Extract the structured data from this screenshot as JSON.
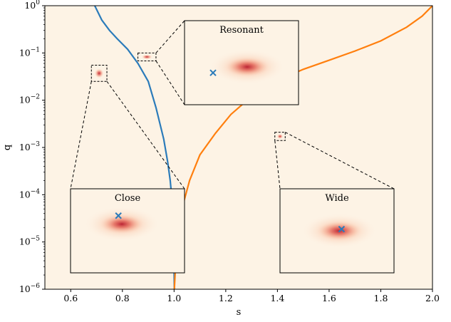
{
  "chart_data": {
    "type": "line",
    "xlabel": "s",
    "ylabel": "q",
    "xlim": [
      0.5,
      2.0
    ],
    "ylim": [
      1e-06,
      1
    ],
    "yscale": "log",
    "grid": false,
    "background_color": "#fdf3e5",
    "x_ticks": [
      "0.6",
      "0.8",
      "1.0",
      "1.2",
      "1.4",
      "1.6",
      "1.8",
      "2.0"
    ],
    "x_tick_values": [
      0.6,
      0.8,
      1.0,
      1.2,
      1.4,
      1.6,
      1.8,
      2.0
    ],
    "y_tick_values": [
      1e-06,
      1e-05,
      0.0001,
      0.001,
      0.01,
      0.1,
      1
    ],
    "y_tick_labels": [
      {
        "base": "10",
        "exp": "−6"
      },
      {
        "base": "10",
        "exp": "−5"
      },
      {
        "base": "10",
        "exp": "−4"
      },
      {
        "base": "10",
        "exp": "−3"
      },
      {
        "base": "10",
        "exp": "−2"
      },
      {
        "base": "10",
        "exp": "−1"
      },
      {
        "base": "10",
        "exp": "0"
      }
    ],
    "series": [
      {
        "color": "#2b7bba",
        "points": [
          [
            0.693,
            1.0
          ],
          [
            0.72,
            0.5
          ],
          [
            0.75,
            0.3
          ],
          [
            0.78,
            0.2
          ],
          [
            0.82,
            0.12
          ],
          [
            0.86,
            0.06
          ],
          [
            0.9,
            0.025
          ],
          [
            0.93,
            0.007
          ],
          [
            0.96,
            0.0015
          ],
          [
            0.975,
            0.0005
          ],
          [
            0.985,
            0.0002
          ],
          [
            0.992,
            8e-05
          ],
          [
            0.998,
            2e-05
          ],
          [
            1.001,
            1e-06
          ]
        ]
      },
      {
        "color": "#ff7f0e",
        "points": [
          [
            1.001,
            1e-06
          ],
          [
            1.01,
            1e-05
          ],
          [
            1.03,
            5e-05
          ],
          [
            1.06,
            0.0002
          ],
          [
            1.1,
            0.0007
          ],
          [
            1.16,
            0.002
          ],
          [
            1.22,
            0.005
          ],
          [
            1.3,
            0.012
          ],
          [
            1.4,
            0.026
          ],
          [
            1.5,
            0.045
          ],
          [
            1.6,
            0.07
          ],
          [
            1.7,
            0.11
          ],
          [
            1.8,
            0.18
          ],
          [
            1.9,
            0.35
          ],
          [
            1.96,
            0.6
          ],
          [
            2.0,
            1.0
          ]
        ]
      }
    ],
    "insets": [
      {
        "title": "Close",
        "source_s": [
          0.68,
          0.74
        ],
        "source_q": [
          0.025,
          0.055
        ],
        "marker_xy": [
          0.42,
          0.32
        ],
        "cloud_xy": [
          0.45,
          0.42
        ]
      },
      {
        "title": "Resonant",
        "source_s": [
          0.86,
          0.93
        ],
        "source_q": [
          0.068,
          0.1
        ],
        "marker_xy": [
          0.25,
          0.62
        ],
        "cloud_xy": [
          0.55,
          0.55
        ]
      },
      {
        "title": "Wide",
        "source_s": [
          1.39,
          1.43
        ],
        "source_q": [
          0.0014,
          0.0021
        ],
        "marker_xy": [
          0.54,
          0.48
        ],
        "cloud_xy": [
          0.52,
          0.5
        ]
      }
    ],
    "marker_color": "#2b7bba"
  }
}
